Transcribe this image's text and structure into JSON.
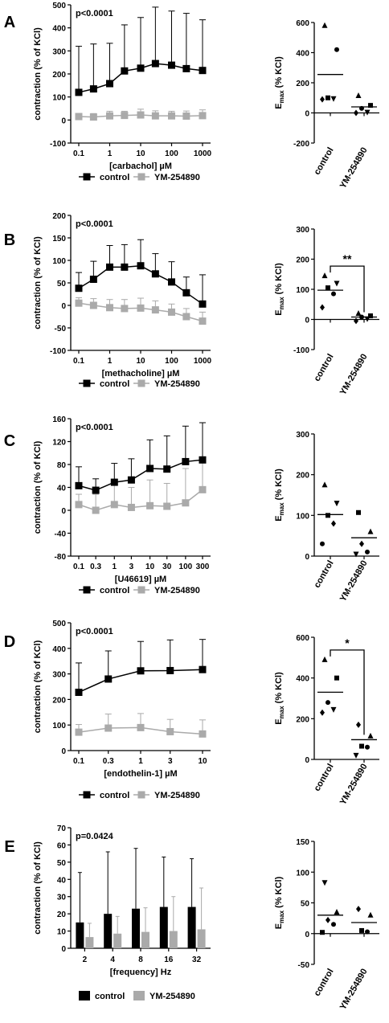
{
  "colors": {
    "control": "#000000",
    "ym": "#aaaaaa"
  },
  "chart_data": [
    {
      "panel": "A",
      "type": "line",
      "title": "",
      "xscale": "log",
      "xlabel": "[carbachol] µM",
      "ylabel": "contraction (% of KCl)",
      "ylim": [
        -100,
        500
      ],
      "yticks": [
        -100,
        0,
        100,
        200,
        300,
        400,
        500
      ],
      "xtick_labels": [
        "0.1",
        "1",
        "10",
        "100",
        "1000"
      ],
      "xtick_values": [
        0.1,
        1,
        10,
        100,
        1000
      ],
      "annotation": "p<0.0001",
      "legend": [
        "control",
        "YM-254890"
      ],
      "series": [
        {
          "name": "control",
          "x": [
            0.1,
            0.3,
            1,
            3,
            10,
            30,
            100,
            300,
            1000
          ],
          "y": [
            120,
            135,
            158,
            213,
            225,
            245,
            238,
            223,
            215
          ],
          "err": [
            200,
            195,
            175,
            200,
            220,
            245,
            235,
            240,
            220
          ]
        },
        {
          "name": "YM-254890",
          "x": [
            0.1,
            0.3,
            1,
            3,
            10,
            30,
            100,
            300,
            1000
          ],
          "y": [
            15,
            13,
            18,
            20,
            22,
            18,
            18,
            17,
            19
          ],
          "err": [
            12,
            15,
            20,
            18,
            25,
            22,
            20,
            22,
            25
          ]
        }
      ]
    },
    {
      "panel": "A",
      "type": "scatter",
      "ylabel": "Emax (% KCl)",
      "ylim": [
        -200,
        600
      ],
      "yticks": [
        -200,
        0,
        200,
        400,
        600
      ],
      "categories": [
        "control",
        "YM-254890"
      ],
      "points": [
        {
          "group": 0,
          "y": 580,
          "marker": "triangle-up"
        },
        {
          "group": 0,
          "y": 420,
          "marker": "circle"
        },
        {
          "group": 0,
          "y": 100,
          "marker": "square"
        },
        {
          "group": 0,
          "y": 95,
          "marker": "triangle-down"
        },
        {
          "group": 0,
          "y": 90,
          "marker": "diamond"
        },
        {
          "group": 1,
          "y": 115,
          "marker": "triangle-up"
        },
        {
          "group": 1,
          "y": 50,
          "marker": "square"
        },
        {
          "group": 1,
          "y": 30,
          "marker": "circle"
        },
        {
          "group": 1,
          "y": 5,
          "marker": "triangle-down"
        },
        {
          "group": 1,
          "y": 0,
          "marker": "diamond"
        }
      ],
      "means": [
        255,
        40
      ],
      "significance": ""
    },
    {
      "panel": "B",
      "type": "line",
      "title": "",
      "xscale": "log",
      "xlabel": "[methacholine] µM",
      "ylabel": "contraction (% of KCl)",
      "ylim": [
        -100,
        200
      ],
      "yticks": [
        -100,
        -50,
        0,
        50,
        100,
        150,
        200
      ],
      "xtick_labels": [
        "0.1",
        "1",
        "10",
        "100",
        "1000"
      ],
      "xtick_values": [
        0.1,
        1,
        10,
        100,
        1000
      ],
      "annotation": "p<0.0001",
      "legend": [
        "control",
        "YM-254890"
      ],
      "series": [
        {
          "name": "control",
          "x": [
            0.1,
            0.3,
            1,
            3,
            10,
            30,
            100,
            300,
            1000
          ],
          "y": [
            38,
            58,
            85,
            85,
            88,
            70,
            52,
            28,
            3
          ],
          "err": [
            35,
            40,
            48,
            50,
            58,
            45,
            45,
            35,
            65
          ]
        },
        {
          "name": "YM-254890",
          "x": [
            0.1,
            0.3,
            1,
            3,
            10,
            30,
            100,
            300,
            1000
          ],
          "y": [
            5,
            0,
            -5,
            -7,
            -6,
            -10,
            -15,
            -25,
            -35
          ],
          "err": [
            12,
            15,
            18,
            20,
            22,
            20,
            18,
            18,
            20
          ]
        }
      ]
    },
    {
      "panel": "B",
      "type": "scatter",
      "ylabel": "Emax (% KCl)",
      "ylim": [
        -100,
        300
      ],
      "yticks": [
        -100,
        0,
        100,
        200,
        300
      ],
      "categories": [
        "control",
        "YM-254890"
      ],
      "points": [
        {
          "group": 0,
          "y": 145,
          "marker": "triangle-up"
        },
        {
          "group": 0,
          "y": 120,
          "marker": "triangle-down"
        },
        {
          "group": 0,
          "y": 105,
          "marker": "square"
        },
        {
          "group": 0,
          "y": 85,
          "marker": "circle"
        },
        {
          "group": 0,
          "y": 40,
          "marker": "diamond"
        },
        {
          "group": 1,
          "y": 20,
          "marker": "triangle-up"
        },
        {
          "group": 1,
          "y": 12,
          "marker": "square"
        },
        {
          "group": 1,
          "y": 8,
          "marker": "circle"
        },
        {
          "group": 1,
          "y": 2,
          "marker": "triangle-down"
        },
        {
          "group": 1,
          "y": -5,
          "marker": "diamond"
        }
      ],
      "means": [
        97,
        8
      ],
      "significance": "**"
    },
    {
      "panel": "C",
      "type": "line",
      "title": "",
      "xscale": "log",
      "xlabel": "[U46619] µM",
      "ylabel": "contraction (% of KCl)",
      "ylim": [
        -80,
        160
      ],
      "yticks": [
        -80,
        -40,
        0,
        40,
        80,
        120,
        160
      ],
      "xtick_labels": [
        "0.1",
        "0.3",
        "1",
        "3",
        "10",
        "30",
        "100",
        "300"
      ],
      "xtick_values": [
        0.1,
        0.3,
        1,
        3,
        10,
        30,
        100,
        300
      ],
      "annotation": "p<0.0001",
      "legend": [
        "control",
        "YM-254890"
      ],
      "series": [
        {
          "name": "control",
          "x": [
            0.1,
            0.3,
            1,
            3,
            10,
            30,
            100,
            300
          ],
          "y": [
            43,
            35,
            49,
            53,
            73,
            72,
            85,
            88
          ],
          "err": [
            33,
            20,
            33,
            37,
            50,
            58,
            62,
            65
          ]
        },
        {
          "name": "YM-254890",
          "x": [
            0.1,
            0.3,
            1,
            3,
            10,
            30,
            100,
            300
          ],
          "y": [
            10,
            0,
            10,
            5,
            8,
            7,
            13,
            36
          ],
          "err": [
            18,
            28,
            38,
            35,
            45,
            40,
            60,
            50
          ]
        }
      ]
    },
    {
      "panel": "C",
      "type": "scatter",
      "ylabel": "Emax (% KCl)",
      "ylim": [
        0,
        300
      ],
      "yticks": [
        0,
        100,
        200,
        300
      ],
      "categories": [
        "control",
        "YM-254890"
      ],
      "points": [
        {
          "group": 0,
          "y": 175,
          "marker": "triangle-up"
        },
        {
          "group": 0,
          "y": 130,
          "marker": "triangle-down"
        },
        {
          "group": 0,
          "y": 100,
          "marker": "square"
        },
        {
          "group": 0,
          "y": 80,
          "marker": "diamond"
        },
        {
          "group": 0,
          "y": 30,
          "marker": "circle"
        },
        {
          "group": 1,
          "y": 107,
          "marker": "square"
        },
        {
          "group": 1,
          "y": 60,
          "marker": "triangle-up"
        },
        {
          "group": 1,
          "y": 30,
          "marker": "diamond"
        },
        {
          "group": 1,
          "y": 10,
          "marker": "circle"
        },
        {
          "group": 1,
          "y": 5,
          "marker": "triangle-down"
        }
      ],
      "means": [
        102,
        45
      ],
      "significance": ""
    },
    {
      "panel": "D",
      "type": "line",
      "title": "",
      "xscale": "log",
      "xlabel": "[endothelin-1] µM",
      "ylabel": "contraction (% of KCl)",
      "ylim": [
        0,
        500
      ],
      "yticks": [
        0,
        100,
        200,
        300,
        400,
        500
      ],
      "xtick_labels": [
        "0.1",
        "0.3",
        "1",
        "3",
        "10"
      ],
      "xtick_values": [
        0.1,
        0.3,
        1,
        3,
        10
      ],
      "annotation": "p<0.0001",
      "legend": [
        "control",
        "YM-254890"
      ],
      "series": [
        {
          "name": "control",
          "x": [
            0.1,
            0.3,
            1,
            3,
            10
          ],
          "y": [
            228,
            280,
            312,
            313,
            317
          ],
          "err": [
            115,
            110,
            115,
            120,
            118
          ]
        },
        {
          "name": "YM-254890",
          "x": [
            0.1,
            0.3,
            1,
            3,
            10
          ],
          "y": [
            72,
            88,
            90,
            74,
            65
          ],
          "err": [
            30,
            55,
            55,
            48,
            55
          ]
        }
      ]
    },
    {
      "panel": "D",
      "type": "scatter",
      "ylabel": "Emax (% KCl)",
      "ylim": [
        0,
        600
      ],
      "yticks": [
        0,
        200,
        400,
        600
      ],
      "categories": [
        "control",
        "YM-254890"
      ],
      "points": [
        {
          "group": 0,
          "y": 490,
          "marker": "triangle-up"
        },
        {
          "group": 0,
          "y": 400,
          "marker": "square"
        },
        {
          "group": 0,
          "y": 280,
          "marker": "circle"
        },
        {
          "group": 0,
          "y": 245,
          "marker": "triangle-down"
        },
        {
          "group": 0,
          "y": 230,
          "marker": "diamond"
        },
        {
          "group": 1,
          "y": 170,
          "marker": "diamond"
        },
        {
          "group": 1,
          "y": 115,
          "marker": "triangle-up"
        },
        {
          "group": 1,
          "y": 65,
          "marker": "square"
        },
        {
          "group": 1,
          "y": 60,
          "marker": "circle"
        },
        {
          "group": 1,
          "y": 20,
          "marker": "triangle-down"
        }
      ],
      "means": [
        330,
        97
      ],
      "significance": "*"
    },
    {
      "panel": "E",
      "type": "bar",
      "title": "",
      "xlabel": "[frequency] Hz",
      "ylabel": "contraction (% of KCl)",
      "ylim": [
        0,
        70
      ],
      "yticks": [
        0,
        10,
        20,
        30,
        40,
        50,
        60,
        70
      ],
      "categories": [
        "2",
        "4",
        "8",
        "16",
        "32"
      ],
      "annotation": "p=0.0424",
      "legend": [
        "control",
        "YM-254890"
      ],
      "series": [
        {
          "name": "control",
          "values": [
            15,
            20,
            23,
            24,
            24
          ],
          "err": [
            29,
            36,
            35,
            29,
            28
          ]
        },
        {
          "name": "YM-254890",
          "values": [
            6.5,
            8.5,
            9.5,
            10,
            11
          ],
          "err": [
            8,
            10,
            14,
            20,
            24
          ]
        }
      ]
    },
    {
      "panel": "E",
      "type": "scatter",
      "ylabel": "Emax (% KCl)",
      "ylim": [
        -50,
        150
      ],
      "yticks": [
        -50,
        0,
        50,
        100,
        150
      ],
      "categories": [
        "control",
        "YM-254890"
      ],
      "points": [
        {
          "group": 0,
          "y": 83,
          "marker": "triangle-down"
        },
        {
          "group": 0,
          "y": 35,
          "marker": "triangle-up"
        },
        {
          "group": 0,
          "y": 22,
          "marker": "diamond"
        },
        {
          "group": 0,
          "y": 15,
          "marker": "circle"
        },
        {
          "group": 0,
          "y": 2,
          "marker": "square"
        },
        {
          "group": 1,
          "y": 40,
          "marker": "diamond"
        },
        {
          "group": 1,
          "y": 30,
          "marker": "triangle-up"
        },
        {
          "group": 1,
          "y": 5,
          "marker": "square"
        },
        {
          "group": 1,
          "y": 3,
          "marker": "circle"
        }
      ],
      "means": [
        30,
        18
      ],
      "significance": ""
    }
  ]
}
